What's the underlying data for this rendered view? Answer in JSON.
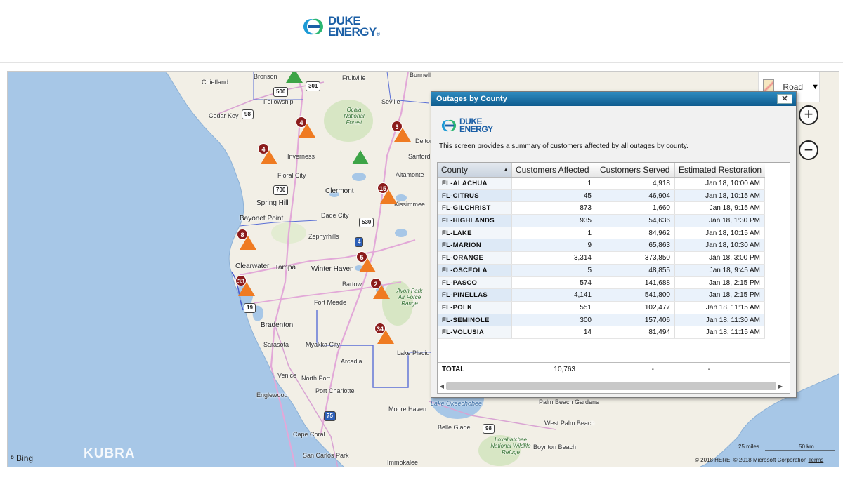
{
  "header": {
    "logo_top": "DUKE",
    "logo_bottom": "ENERGY",
    "logo_reg": "®"
  },
  "map": {
    "map_type_label": "Road",
    "zoom_in": "+",
    "zoom_out": "−",
    "bing_label": "Bing",
    "kubra_label": "KUBRA",
    "scale_miles": "25 miles",
    "scale_km": "50 km",
    "copyright": "© 2018 HERE, © 2018 Microsoft Corporation",
    "terms": "Terms",
    "cities": [
      {
        "name": "Bronson"
      },
      {
        "name": "Chiefland"
      },
      {
        "name": "Fellowship"
      },
      {
        "name": "Cedar Key"
      },
      {
        "name": "Inverness"
      },
      {
        "name": "Floral City"
      },
      {
        "name": "Spring Hill"
      },
      {
        "name": "Bayonet Point"
      },
      {
        "name": "Clearwater"
      },
      {
        "name": "Tampa"
      },
      {
        "name": "Dade City"
      },
      {
        "name": "Zephyrhills"
      },
      {
        "name": "Clermont"
      },
      {
        "name": "Winter Haven"
      },
      {
        "name": "Bartow"
      },
      {
        "name": "Fort Meade"
      },
      {
        "name": "Bradenton"
      },
      {
        "name": "Sarasota"
      },
      {
        "name": "Myakka City"
      },
      {
        "name": "Arcadia"
      },
      {
        "name": "Venice"
      },
      {
        "name": "North Port"
      },
      {
        "name": "Port Charlotte"
      },
      {
        "name": "Englewood"
      },
      {
        "name": "Cape Coral"
      },
      {
        "name": "San Carlos Park"
      },
      {
        "name": "Immokalee"
      },
      {
        "name": "Moore Haven"
      },
      {
        "name": "Belle Glade"
      },
      {
        "name": "Lake Placid"
      },
      {
        "name": "Kissimmee"
      },
      {
        "name": "Altamonte"
      },
      {
        "name": "Sanford"
      },
      {
        "name": "Deltona"
      },
      {
        "name": "Seville"
      },
      {
        "name": "Bunnell"
      },
      {
        "name": "Fruitville"
      },
      {
        "name": "Palm Beach Gardens"
      },
      {
        "name": "West Palm Beach"
      },
      {
        "name": "Boynton Beach"
      },
      {
        "name": "Lake Okeechobee"
      }
    ],
    "forest_labels": [
      "Ocala National Forest",
      "Avon Park Air Force Range",
      "Loxahatchee National Wildlife Refuge"
    ],
    "shields": [
      "500",
      "301",
      "98",
      "700",
      "530",
      "4",
      "19",
      "75",
      "98"
    ],
    "markers": [
      {
        "count": "4",
        "color": "orange"
      },
      {
        "count": "3",
        "color": "orange"
      },
      {
        "count": "4",
        "color": "orange"
      },
      {
        "count": "",
        "color": "green"
      },
      {
        "count": "",
        "color": "green"
      },
      {
        "count": "15",
        "color": "orange"
      },
      {
        "count": "8",
        "color": "orange"
      },
      {
        "count": "5",
        "color": "orange"
      },
      {
        "count": "33",
        "color": "orange"
      },
      {
        "count": "2",
        "color": "orange"
      },
      {
        "count": "34",
        "color": "orange"
      }
    ]
  },
  "panel": {
    "title": "Outages by County",
    "close": "✕",
    "logo_top": "DUKE",
    "logo_bottom": "ENERGY",
    "description": "This screen provides a summary of customers affected by all outages by county.",
    "columns": [
      "County",
      "Customers Affected",
      "Customers Served",
      "Estimated Restoration"
    ],
    "sort_indicator": "▲",
    "rows": [
      {
        "county": "FL-ALACHUA",
        "affected": "1",
        "served": "4,918",
        "restoration": "Jan 18, 10:00 AM"
      },
      {
        "county": "FL-CITRUS",
        "affected": "45",
        "served": "46,904",
        "restoration": "Jan 18, 10:15 AM"
      },
      {
        "county": "FL-GILCHRIST",
        "affected": "873",
        "served": "1,660",
        "restoration": "Jan 18, 9:15 AM"
      },
      {
        "county": "FL-HIGHLANDS",
        "affected": "935",
        "served": "54,636",
        "restoration": "Jan 18, 1:30 PM"
      },
      {
        "county": "FL-LAKE",
        "affected": "1",
        "served": "84,962",
        "restoration": "Jan 18, 10:15 AM"
      },
      {
        "county": "FL-MARION",
        "affected": "9",
        "served": "65,863",
        "restoration": "Jan 18, 10:30 AM"
      },
      {
        "county": "FL-ORANGE",
        "affected": "3,314",
        "served": "373,850",
        "restoration": "Jan 18, 3:00 PM"
      },
      {
        "county": "FL-OSCEOLA",
        "affected": "5",
        "served": "48,855",
        "restoration": "Jan 18, 9:45 AM"
      },
      {
        "county": "FL-PASCO",
        "affected": "574",
        "served": "141,688",
        "restoration": "Jan 18, 2:15 PM"
      },
      {
        "county": "FL-PINELLAS",
        "affected": "4,141",
        "served": "541,800",
        "restoration": "Jan 18, 2:15 PM"
      },
      {
        "county": "FL-POLK",
        "affected": "551",
        "served": "102,477",
        "restoration": "Jan 18, 11:15 AM"
      },
      {
        "county": "FL-SEMINOLE",
        "affected": "300",
        "served": "157,406",
        "restoration": "Jan 18, 11:30 AM"
      },
      {
        "county": "FL-VOLUSIA",
        "affected": "14",
        "served": "81,494",
        "restoration": "Jan 18, 11:15 AM"
      }
    ],
    "total": {
      "label": "TOTAL",
      "affected": "10,763",
      "served": "-",
      "restoration": "-"
    },
    "scroll_left": "◀",
    "scroll_right": "▶"
  },
  "colors": {
    "water": "#a7c7e7",
    "land": "#f2efe6",
    "brand_blue": "#1b5fa6",
    "outage_orange": "#ef7b22",
    "restored_green": "#3da447",
    "badge_red": "#8b1b1b",
    "titlebar": "#0e5b8e"
  }
}
